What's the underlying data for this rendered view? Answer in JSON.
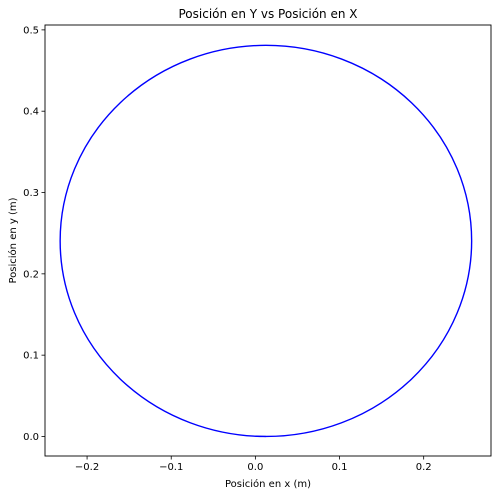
{
  "chart_data": {
    "type": "line",
    "title": "Posición en Y vs Posición en X",
    "xlabel": "Posición en x (m)",
    "ylabel": "Posición en y (m)",
    "xlim": [
      -0.25,
      0.28
    ],
    "ylim": [
      -0.024,
      0.506
    ],
    "x_ticks": [
      -0.2,
      -0.1,
      0.0,
      0.1,
      0.2
    ],
    "x_tick_labels": [
      "−0.2",
      "−0.1",
      "0.0",
      "0.1",
      "0.2"
    ],
    "y_ticks": [
      0.0,
      0.1,
      0.2,
      0.3,
      0.4,
      0.5
    ],
    "y_tick_labels": [
      "0.0",
      "0.1",
      "0.2",
      "0.3",
      "0.4",
      "0.5"
    ],
    "grid": false,
    "series": [
      {
        "color": "#0000ff",
        "shape": "ellipse",
        "center": [
          0.0125,
          0.2405
        ],
        "x_extent": [
          -0.232,
          0.257
        ],
        "y_extent": [
          0.0,
          0.481
        ]
      }
    ]
  }
}
